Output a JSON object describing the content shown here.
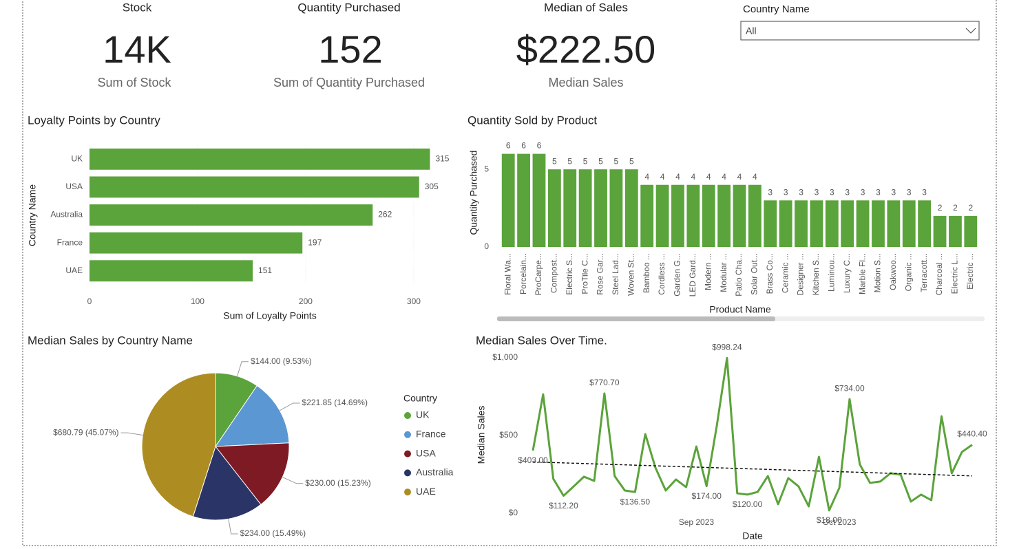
{
  "cards": [
    {
      "title": "Stock",
      "value": "14K",
      "label": "Sum of  Stock"
    },
    {
      "title": "Quantity Purchased",
      "value": 152,
      "label": "Sum of Quantity Purchased"
    },
    {
      "title": "Median of Sales",
      "value": "$222.50",
      "label": "Median Sales"
    }
  ],
  "slicer": {
    "label": "Country Name",
    "selected": "All"
  },
  "chart_data": [
    {
      "type": "bar",
      "horizontal": true,
      "title": "Loyalty Points by Country",
      "categories": [
        "UK",
        "USA",
        "Australia",
        "France",
        "UAE"
      ],
      "values": [
        315,
        305,
        262,
        197,
        151
      ],
      "color": "#5ba33b",
      "xlim": [
        0,
        330
      ],
      "xticks": [
        0,
        100,
        200,
        300
      ],
      "grid": true,
      "x_label": "Sum of Loyalty Points",
      "y_label": "Country Name"
    },
    {
      "type": "bar",
      "horizontal": false,
      "title": "Quantity Sold by Product",
      "categories": [
        "Floral Wa...",
        "Porcelain...",
        "ProCarpe...",
        "Compost...",
        "Electric S...",
        "ProTile C...",
        "Rose Gar...",
        "Steel Lad...",
        "Woven St...",
        "Bamboo ...",
        "Cordless ...",
        "Garden G...",
        "LED Gard...",
        "Modern ...",
        "Modular ...",
        "Patio Cha...",
        "Solar Out...",
        "Brass Co...",
        "Ceramic ...",
        "Designer ...",
        "Kitchen S...",
        "Luminou...",
        "Luxury C...",
        "Marble Fl...",
        "Motion S...",
        "Oakwoo...",
        "Organic ...",
        "Terracott...",
        "Charcoal ...",
        "Electric L...",
        "Electric ..."
      ],
      "values": [
        6,
        6,
        6,
        5,
        5,
        5,
        5,
        5,
        5,
        4,
        4,
        4,
        4,
        4,
        4,
        4,
        4,
        3,
        3,
        3,
        3,
        3,
        3,
        3,
        3,
        3,
        3,
        3,
        2,
        2,
        2
      ],
      "color": "#5ba33b",
      "ylim": [
        0,
        7
      ],
      "yticks": [
        0,
        5
      ],
      "grid": false,
      "x_label": "Product Name",
      "y_label": "Quantity Purchased"
    },
    {
      "type": "pie",
      "title": "Median Sales by Country Name",
      "legend_title": "Country",
      "categories": [
        "UK",
        "France",
        "USA",
        "Australia",
        "UAE"
      ],
      "values": [
        144.0,
        221.85,
        230.0,
        234.0,
        680.79
      ],
      "value_labels": [
        "$144.00 (9.53%)",
        "$221.85 (14.69%)",
        "$230.00 (15.23%)",
        "$234.00 (15.49%)",
        "$680.79 (45.07%)"
      ],
      "colors": [
        "#5ba33b",
        "#5b97d2",
        "#7d1a23",
        "#2b3467",
        "#ad8d22"
      ]
    },
    {
      "type": "line",
      "title": "Median Sales Over Time.",
      "categories": [
        null,
        null,
        null,
        null,
        null,
        null,
        null,
        null,
        null,
        null,
        null,
        null,
        null,
        null,
        null,
        null,
        "Sep 2023",
        null,
        null,
        null,
        null,
        null,
        null,
        null,
        null,
        null,
        null,
        null,
        null,
        null,
        "Oct 2023",
        null,
        null,
        null,
        null,
        null,
        null,
        null,
        null,
        null,
        null,
        null,
        null,
        null
      ],
      "values": [
        403,
        765,
        221,
        112.2,
        173,
        235,
        208,
        770.7,
        239,
        146,
        136.5,
        509,
        292,
        146,
        217,
        168,
        429,
        174,
        562,
        998.24,
        128,
        120,
        137,
        239,
        58,
        226,
        173,
        44,
        363,
        18,
        164,
        734,
        314,
        195,
        204,
        257,
        248,
        75,
        120,
        84,
        624,
        257,
        394,
        440.4
      ],
      "value_labels": [
        "$403.00",
        null,
        null,
        "$112.20",
        null,
        null,
        null,
        "$770.70",
        null,
        null,
        "$136.50",
        null,
        null,
        null,
        null,
        null,
        null,
        "$174.00",
        null,
        "$998.24",
        null,
        "$120.00",
        null,
        null,
        null,
        null,
        null,
        null,
        null,
        "$18.00",
        null,
        "$734.00",
        null,
        null,
        null,
        null,
        null,
        null,
        null,
        null,
        null,
        null,
        null,
        "$440.40"
      ],
      "color": "#5ba33b",
      "ylim": [
        0,
        1000
      ],
      "yticks": [
        {
          "value": 0,
          "label": "$0"
        },
        {
          "value": 500,
          "label": "$500"
        },
        {
          "value": 1000,
          "label": "$1,000"
        }
      ],
      "trendline": {
        "start": 330,
        "end": 240
      },
      "x_label": "Date",
      "y_label": "Median Sales"
    }
  ]
}
